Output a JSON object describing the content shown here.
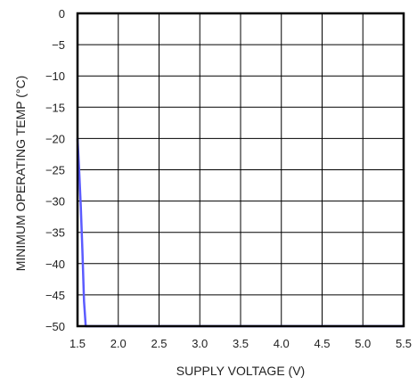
{
  "chart_data": {
    "type": "line",
    "title": "",
    "xlabel": "SUPPLY VOLTAGE (V)",
    "ylabel": "MINIMUM OPERATING TEMP (°C)",
    "xlim": [
      1.5,
      5.5
    ],
    "ylim": [
      -50,
      0
    ],
    "x_ticks": [
      1.5,
      2.0,
      2.5,
      3.0,
      3.5,
      4.0,
      4.5,
      5.0,
      5.5
    ],
    "x_tick_labels": [
      "1.5",
      "2.0",
      "2.5",
      "3.0",
      "3.5",
      "4.0",
      "4.5",
      "5.0",
      "5.5"
    ],
    "y_ticks": [
      0,
      -5,
      -10,
      -15,
      -20,
      -25,
      -30,
      -35,
      -40,
      -45,
      -50
    ],
    "y_tick_labels": [
      "0",
      "−5",
      "−10",
      "−15",
      "−20",
      "−25",
      "−30",
      "−35",
      "−40",
      "−45",
      "−50"
    ],
    "grid": true,
    "series": [
      {
        "color": "#5b5bff",
        "x": [
          1.5,
          1.52,
          1.54,
          1.56,
          1.58,
          1.6,
          1.65,
          2.0,
          3.0,
          4.0,
          5.0,
          5.5
        ],
        "y": [
          -20,
          -25,
          -31,
          -38,
          -46,
          -50,
          -50,
          -50,
          -50,
          -50,
          -50,
          -50
        ]
      }
    ]
  }
}
